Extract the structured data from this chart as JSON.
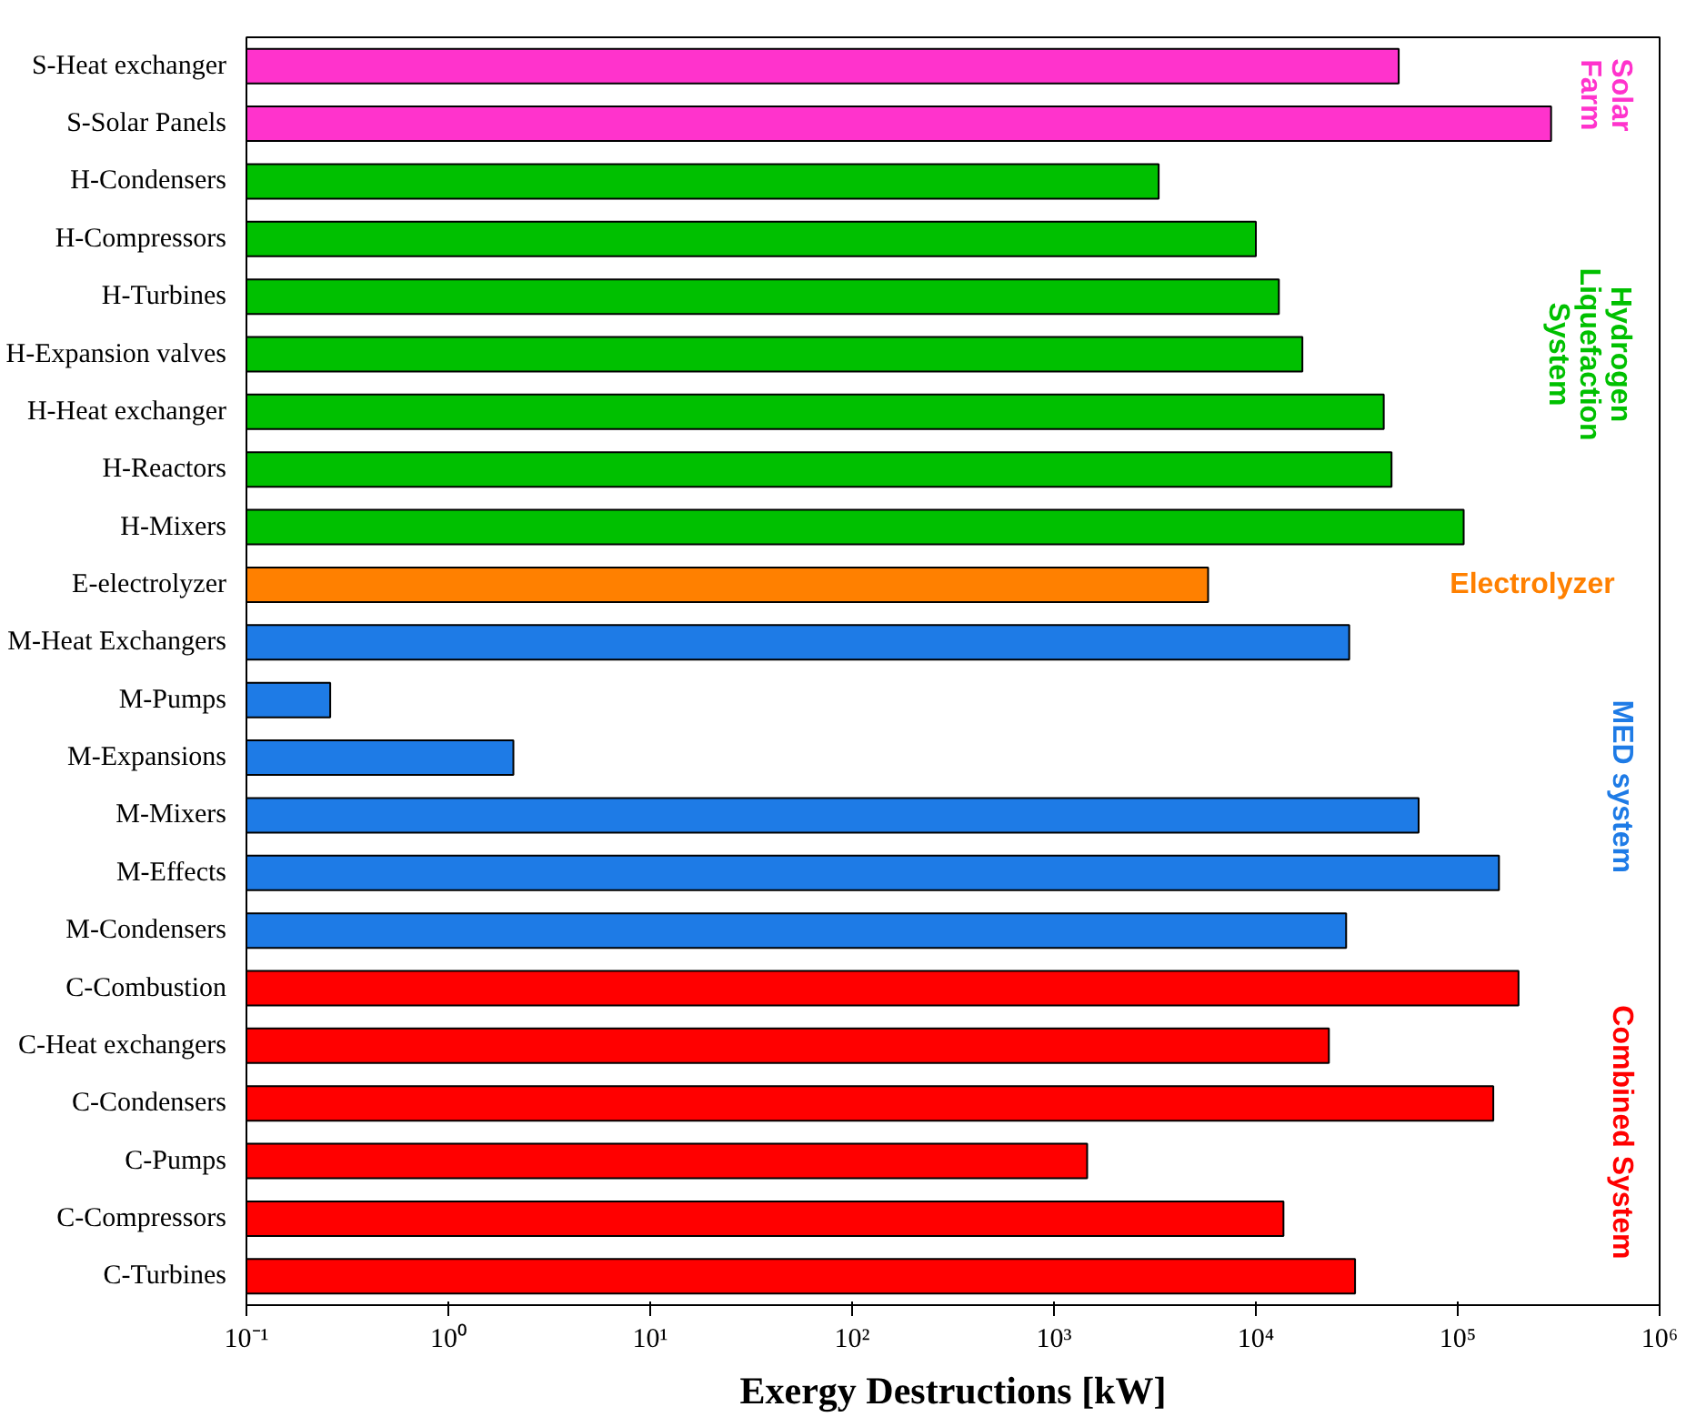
{
  "chart_data": {
    "type": "bar",
    "orientation": "horizontal",
    "log": "x",
    "xlabel": "Exergy Destructions [kW]",
    "categories": [
      "S-Heat exchanger",
      "S-Solar Panels",
      "H-Condensers",
      "H-Compressors",
      "H-Turbines",
      "H-Expansion valves",
      "H-Heat exchanger",
      "H-Reactors",
      "H-Mixers",
      "E-electrolyzer",
      "M-Heat Exchangers",
      "M-Pumps",
      "M-Expansions",
      "M-Mixers",
      "M-Effects",
      "M-Condensers",
      "C-Combustion",
      "C-Heat exchangers",
      "C-Condensers",
      "C-Pumps",
      "C-Compressors",
      "C-Turbines"
    ],
    "values": [
      51000,
      290000,
      3300,
      10000,
      13000,
      17000,
      43000,
      47000,
      107000,
      5800,
      29000,
      0.26,
      2.1,
      64000,
      160000,
      28000,
      200000,
      23000,
      150000,
      1460,
      13700,
      31000
    ],
    "colors": [
      "#ff33cc",
      "#ff33cc",
      "#00c000",
      "#00c000",
      "#00c000",
      "#00c000",
      "#00c000",
      "#00c000",
      "#00c000",
      "#ff8000",
      "#1e7be6",
      "#1e7be6",
      "#1e7be6",
      "#1e7be6",
      "#1e7be6",
      "#1e7be6",
      "#ff0000",
      "#ff0000",
      "#ff0000",
      "#ff0000",
      "#ff0000",
      "#ff0000"
    ],
    "xlim": [
      0.1,
      1000000
    ],
    "xticks": [
      {
        "value": 0.1,
        "label": "10⁻¹"
      },
      {
        "value": 1,
        "label": "10⁰"
      },
      {
        "value": 10,
        "label": "10¹"
      },
      {
        "value": 100,
        "label": "10²"
      },
      {
        "value": 1000,
        "label": "10³"
      },
      {
        "value": 10000,
        "label": "10⁴"
      },
      {
        "value": 100000,
        "label": "10⁵"
      },
      {
        "value": 1000000,
        "label": "10⁶"
      }
    ],
    "annotations": [
      "Solar\nFarm",
      "Hydrogen\nLiquefaction\nSystem",
      "Electrolyzer",
      "MED system",
      "Combined System"
    ],
    "grid": false
  }
}
